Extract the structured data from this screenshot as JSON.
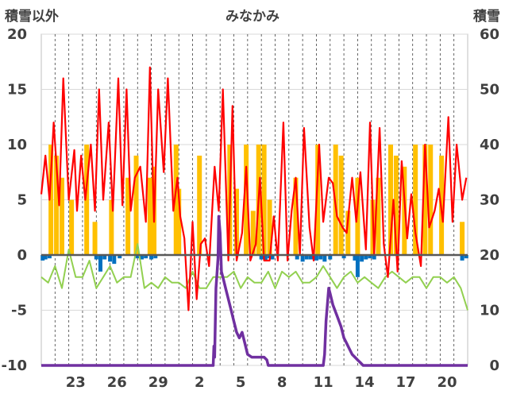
{
  "chart_data": {
    "type": "line",
    "title": "みなかみ",
    "ylabel_left": "積雪以外",
    "ylabel_right": "積雪",
    "ylim_left": [
      -10,
      20
    ],
    "ylim_right": [
      0,
      60
    ],
    "yticks_left": [
      "20",
      "15",
      "10",
      "5",
      "0",
      "-5",
      "-10"
    ],
    "yticks_right": [
      "60",
      "50",
      "40",
      "30",
      "20",
      "10",
      "0"
    ],
    "xticks": [
      "23",
      "26",
      "29",
      "2",
      "5",
      "8",
      "11",
      "14",
      "17",
      "20"
    ],
    "x_range_days": [
      21,
      52
    ],
    "grid": "vertical dashed daily, horizontal solid",
    "colors": {
      "temp_max": "#ff0000",
      "temp_min": "#92d050",
      "snowfall": "#ffc000",
      "precip": "#0070c0",
      "snow_depth": "#7030a0",
      "zero_line": "#595959"
    },
    "series": [
      {
        "key": "temp_max",
        "x": [
          21.0,
          21.3,
          21.6,
          21.9,
          22.3,
          22.6,
          23.0,
          23.4,
          23.6,
          23.9,
          24.2,
          24.6,
          24.9,
          25.2,
          25.5,
          25.9,
          26.2,
          26.6,
          26.9,
          27.2,
          27.5,
          27.8,
          28.2,
          28.6,
          28.9,
          29.2,
          29.5,
          29.9,
          30.2,
          30.6,
          30.9,
          31.1,
          31.4,
          31.7,
          32.0,
          32.3,
          32.6,
          32.9,
          33.2,
          33.6,
          33.9,
          34.2,
          34.6,
          34.9,
          35.2,
          35.6,
          35.9,
          36.2,
          36.6,
          36.9,
          37.2,
          37.6,
          37.9,
          38.2,
          38.6,
          38.9,
          39.2,
          39.5,
          39.8,
          40.1,
          40.5,
          40.8,
          41.2,
          41.5,
          41.9,
          42.2,
          42.5,
          42.9,
          43.2,
          43.6,
          43.9,
          44.2,
          44.6,
          44.9,
          45.2,
          45.6,
          45.9,
          46.2,
          46.6,
          46.9,
          47.2,
          47.6,
          47.9,
          48.2,
          48.6,
          48.9,
          49.2,
          49.6,
          49.9,
          50.2,
          50.6,
          50.9,
          51.2,
          51.6,
          51.9
        ],
        "y": [
          5.5,
          9,
          5,
          12,
          4.5,
          16,
          5,
          9.5,
          4,
          9,
          5,
          10,
          4,
          15,
          5,
          12,
          4,
          16,
          4.5,
          15,
          4,
          7,
          8,
          3,
          17,
          3,
          15,
          7.5,
          16,
          4,
          7,
          3.5,
          1.5,
          -5,
          3,
          -4,
          1,
          1.5,
          -1,
          8,
          4,
          15,
          -0.5,
          13.5,
          -0.5,
          2,
          8,
          -0.5,
          1,
          7,
          -0.5,
          -0.5,
          3.5,
          -0.5,
          12,
          -0.5,
          4,
          7,
          0,
          11.5,
          2.5,
          -0.5,
          10,
          3,
          7,
          6.5,
          3.5,
          2.5,
          2,
          7,
          3,
          7.5,
          0.5,
          12,
          0,
          11.5,
          1,
          -2,
          5,
          -1.5,
          8.5,
          1.5,
          5.5,
          2,
          -1,
          10,
          2.5,
          4,
          6,
          3,
          12.5,
          3,
          10,
          5,
          7
        ]
      },
      {
        "key": "temp_min",
        "x": [
          21.0,
          21.5,
          22.0,
          22.5,
          23.0,
          23.5,
          24.0,
          24.5,
          25.0,
          25.5,
          26.0,
          26.5,
          27.0,
          27.5,
          28.0,
          28.5,
          29.0,
          29.5,
          30.0,
          30.5,
          31.0,
          31.5,
          32.0,
          32.5,
          33.0,
          33.5,
          34.0,
          34.5,
          35.0,
          35.5,
          36.0,
          36.5,
          37.0,
          37.5,
          38.0,
          38.5,
          39.0,
          39.5,
          40.0,
          40.5,
          41.0,
          41.5,
          42.0,
          42.5,
          43.0,
          43.5,
          44.0,
          44.5,
          45.0,
          45.5,
          46.0,
          46.5,
          47.0,
          47.5,
          48.0,
          48.5,
          49.0,
          49.5,
          50.0,
          50.5,
          51.0,
          51.5,
          52.0
        ],
        "y": [
          -2,
          -2.5,
          -1,
          -3,
          0.5,
          -2,
          -2,
          -0.5,
          -3,
          -2,
          -1,
          -2.5,
          -2,
          -2,
          1,
          -3,
          -2.5,
          -3,
          -2,
          -2.5,
          -2.5,
          -3,
          -1.5,
          -3,
          -3,
          -2,
          -2,
          -2,
          -1.5,
          -3,
          -2,
          -2.5,
          -2.5,
          -1.5,
          -3,
          -1.5,
          -2,
          -1.5,
          -2.5,
          -2.5,
          -2,
          -1,
          -2,
          -3,
          -2,
          -1.5,
          -2.5,
          -2,
          -2.5,
          -3,
          -2,
          -1.5,
          -2,
          -2.5,
          -2,
          -2,
          -3,
          -2,
          -2,
          -2.5,
          -2,
          -3,
          -5
        ]
      },
      {
        "key": "snow_depth",
        "x": [
          21.0,
          33.5,
          33.55,
          33.6,
          33.7,
          33.8,
          33.85,
          33.9,
          34.0,
          34.1,
          34.2,
          34.4,
          34.6,
          34.8,
          35.0,
          35.2,
          35.4,
          35.6,
          35.8,
          36.0,
          36.3,
          36.6,
          36.9,
          37.2,
          37.4,
          37.5,
          38.0,
          41.5,
          41.6,
          41.7,
          41.9,
          42.0,
          42.2,
          42.5,
          42.8,
          43.0,
          43.2,
          43.4,
          43.6,
          43.8,
          44.0,
          44.2,
          44.4,
          44.6,
          45.0,
          52.0
        ],
        "y": [
          0,
          0,
          3.5,
          1.5,
          14,
          17.5,
          19.5,
          27,
          24,
          17,
          16,
          14,
          12,
          10,
          8,
          6,
          5,
          6,
          4,
          2,
          1.5,
          1.5,
          1.5,
          1.5,
          1,
          0,
          0,
          0,
          2,
          8,
          14,
          13,
          11,
          9,
          7,
          5,
          4,
          3,
          2,
          1.5,
          1,
          0.5,
          0,
          0,
          0,
          0
        ]
      },
      {
        "key": "snowfall",
        "x": [
          21.7,
          22.1,
          22.5,
          23.2,
          24.3,
          24.9,
          26.1,
          27.3,
          27.9,
          28.9,
          29.2,
          30.8,
          31.0,
          32.5,
          34.7,
          35.2,
          35.9,
          36.4,
          36.8,
          37.2,
          37.6,
          39.5,
          41.1,
          42.4,
          42.8,
          43.3,
          44.0,
          45.1,
          45.5,
          46.4,
          46.8,
          47.4,
          48.2,
          48.9,
          49.3,
          50.1,
          51.6
        ],
        "y": [
          10,
          9,
          7,
          5,
          10,
          3,
          5,
          7,
          9,
          7,
          8,
          10,
          6,
          9,
          10,
          6,
          10,
          4,
          10,
          10,
          5,
          7,
          10,
          10,
          9,
          4,
          7,
          5,
          7,
          10,
          9,
          8,
          10,
          10,
          10,
          9,
          3
        ]
      },
      {
        "key": "precip",
        "x": [
          21.1,
          21.3,
          21.6,
          25.0,
          25.3,
          25.6,
          26.0,
          26.3,
          26.7,
          28.0,
          28.3,
          28.6,
          29.0,
          29.3,
          37.0,
          37.3,
          37.6,
          37.8,
          39.6,
          40.0,
          40.3,
          40.6,
          41.0,
          41.3,
          41.6,
          42.0,
          43.0,
          43.8,
          44.0,
          44.3,
          44.6,
          44.9,
          45.2,
          51.6,
          51.9
        ],
        "y": [
          -0.5,
          -0.4,
          -0.3,
          -0.4,
          -1.5,
          -0.4,
          -0.6,
          -0.8,
          -0.3,
          -0.3,
          -0.4,
          -0.3,
          -0.4,
          -0.3,
          -0.4,
          -0.5,
          -0.3,
          -0.4,
          -0.4,
          -0.6,
          -0.4,
          -0.4,
          -0.5,
          -0.4,
          -0.6,
          -0.4,
          -0.3,
          -0.5,
          -2,
          -0.6,
          -0.4,
          -0.3,
          -0.4,
          -0.5,
          -0.3
        ]
      }
    ]
  }
}
